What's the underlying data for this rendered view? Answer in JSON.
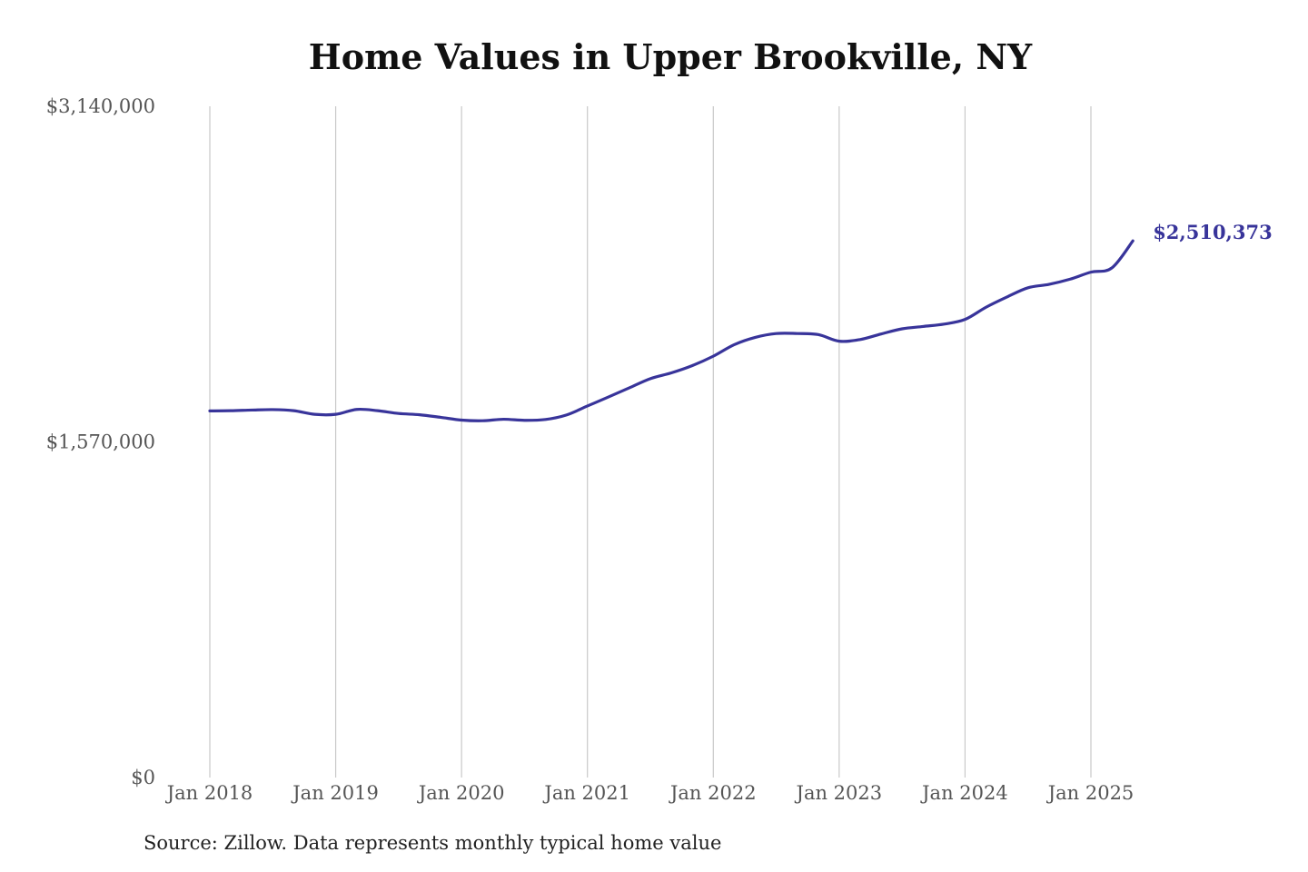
{
  "chart_data": {
    "type": "line",
    "title": "Home Values in Upper Brookville, NY",
    "source": "Source: Zillow. Data represents monthly typical home value",
    "xlabel": "",
    "ylabel": "",
    "ylim": [
      0,
      3140000
    ],
    "y_ticks": [
      {
        "value": 3140000,
        "label": "$3,140,000"
      },
      {
        "value": 1570000,
        "label": "$1,570,000"
      },
      {
        "value": 0,
        "label": "$0"
      }
    ],
    "x_ticks": [
      {
        "date": "2018-01",
        "label": "Jan 2018"
      },
      {
        "date": "2019-01",
        "label": "Jan 2019"
      },
      {
        "date": "2020-01",
        "label": "Jan 2020"
      },
      {
        "date": "2021-01",
        "label": "Jan 2021"
      },
      {
        "date": "2022-01",
        "label": "Jan 2022"
      },
      {
        "date": "2023-01",
        "label": "Jan 2023"
      },
      {
        "date": "2024-01",
        "label": "Jan 2024"
      },
      {
        "date": "2025-01",
        "label": "Jan 2025"
      }
    ],
    "grid": {
      "vertical": true,
      "horizontal": false
    },
    "line_color": "#38349a",
    "grid_color": "#c8c8c8",
    "series": [
      {
        "x": [
          "2018-01",
          "2018-03",
          "2018-05",
          "2018-07",
          "2018-09",
          "2018-11",
          "2019-01",
          "2019-03",
          "2019-05",
          "2019-07",
          "2019-09",
          "2019-11",
          "2020-01",
          "2020-03",
          "2020-05",
          "2020-07",
          "2020-09",
          "2020-11",
          "2021-01",
          "2021-03",
          "2021-05",
          "2021-07",
          "2021-09",
          "2021-11",
          "2022-01",
          "2022-03",
          "2022-05",
          "2022-07",
          "2022-09",
          "2022-11",
          "2023-01",
          "2023-03",
          "2023-05",
          "2023-07",
          "2023-09",
          "2023-11",
          "2024-01",
          "2024-03",
          "2024-05",
          "2024-07",
          "2024-09",
          "2024-11",
          "2025-01",
          "2025-03",
          "2025-05"
        ],
        "values": [
          1715000,
          1716000,
          1719000,
          1721000,
          1716000,
          1699000,
          1699000,
          1722000,
          1716000,
          1703000,
          1697000,
          1685000,
          1672000,
          1669000,
          1676000,
          1671000,
          1675000,
          1696000,
          1738000,
          1780000,
          1823000,
          1866000,
          1893000,
          1927000,
          1971000,
          2025000,
          2059000,
          2077000,
          2077000,
          2072000,
          2041000,
          2049000,
          2075000,
          2099000,
          2110000,
          2121000,
          2143000,
          2200000,
          2248000,
          2291000,
          2307000,
          2331000,
          2364000,
          2384000,
          2510373
        ]
      }
    ],
    "end_label": "$2,510,373",
    "end_value": 2510373
  }
}
